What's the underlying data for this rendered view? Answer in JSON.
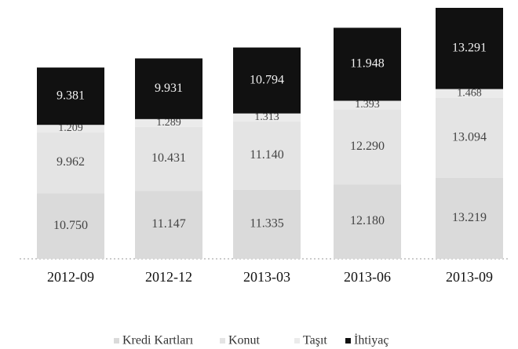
{
  "chart_data": {
    "type": "stacked_bar",
    "categories": [
      "2012-09",
      "2012-12",
      "2013-03",
      "2013-06",
      "2013-09"
    ],
    "series": [
      {
        "name": "Kredi Kartları",
        "color": "#dadada",
        "values": [
          10750,
          11147,
          11335,
          12180,
          13219
        ],
        "value_labels": [
          "10.750",
          "11.147",
          "11.335",
          "12.180",
          "13.219"
        ]
      },
      {
        "name": "Konut",
        "color": "#e4e4e4",
        "values": [
          9962,
          10431,
          11140,
          12290,
          13094
        ],
        "value_labels": [
          "9.962",
          "10.431",
          "11.140",
          "12.290",
          "13.094"
        ]
      },
      {
        "name": "Taşıt",
        "color": "#ebebeb",
        "values": [
          1209,
          1289,
          1313,
          1393,
          1468
        ],
        "value_labels": [
          "1.209",
          "1.289",
          "1.313",
          "1.393",
          "1.468"
        ]
      },
      {
        "name": "İhtiyaç",
        "color": "#111111",
        "values": [
          9381,
          9931,
          10794,
          11948,
          13291
        ],
        "value_labels": [
          "9.381",
          "9.931",
          "10.794",
          "11.948",
          "13.291"
        ]
      }
    ]
  }
}
